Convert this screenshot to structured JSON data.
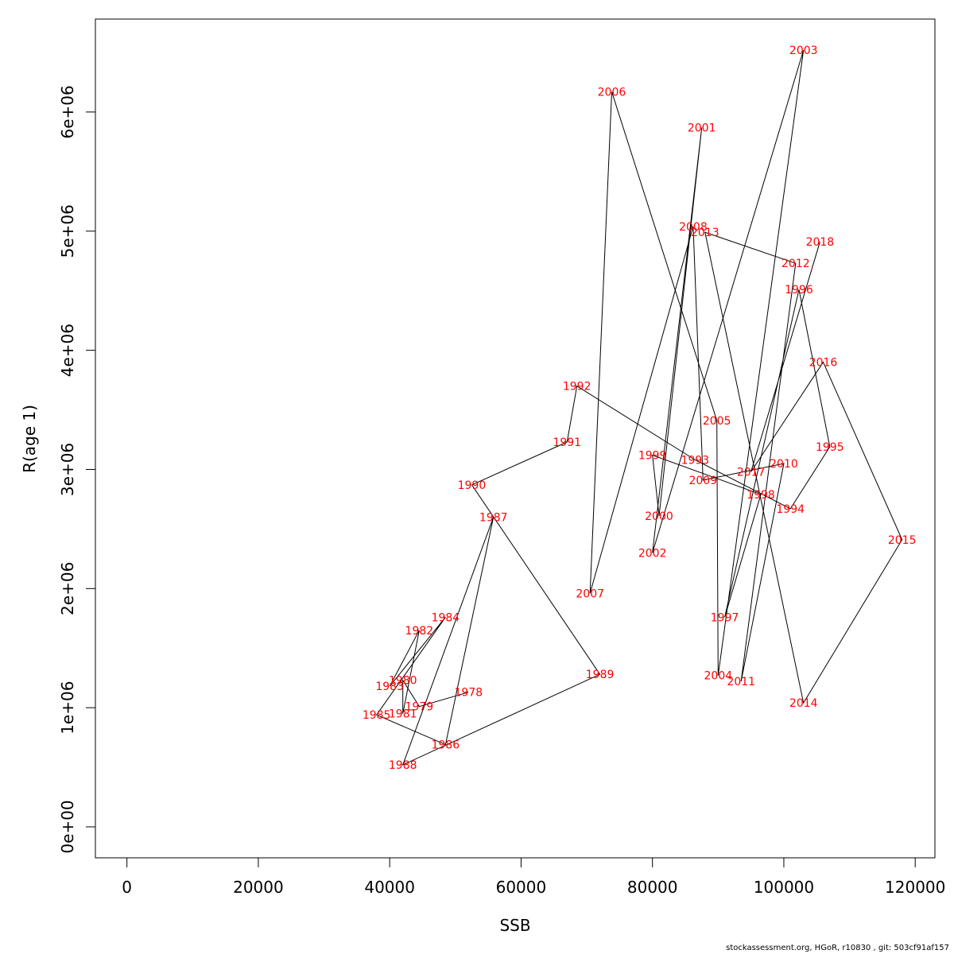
{
  "chart_data": {
    "type": "line",
    "xlabel": "SSB",
    "ylabel": "R(age 1)",
    "xlim": [
      -4800,
      123000
    ],
    "ylim": [
      -260000,
      6780000
    ],
    "x_ticks": [
      0,
      20000,
      40000,
      60000,
      80000,
      100000,
      120000
    ],
    "x_tick_labels": [
      "0",
      "20000",
      "40000",
      "60000",
      "80000",
      "100000",
      "120000"
    ],
    "y_ticks": [
      0,
      1000000,
      2000000,
      3000000,
      4000000,
      5000000,
      6000000
    ],
    "y_tick_labels": [
      "0e+00",
      "1e+06",
      "2e+06",
      "3e+06",
      "4e+06",
      "5e+06",
      "6e+06"
    ],
    "point_label_color": "#ff0000",
    "line_color": "#000000",
    "points": [
      {
        "year": "1978",
        "ssb": 52000,
        "r": 1130000
      },
      {
        "year": "1979",
        "ssb": 44500,
        "r": 1010000
      },
      {
        "year": "1980",
        "ssb": 42000,
        "r": 1230000
      },
      {
        "year": "1981",
        "ssb": 42000,
        "r": 950000
      },
      {
        "year": "1982",
        "ssb": 44500,
        "r": 1650000
      },
      {
        "year": "1983",
        "ssb": 40000,
        "r": 1180000
      },
      {
        "year": "1984",
        "ssb": 48500,
        "r": 1760000
      },
      {
        "year": "1985",
        "ssb": 38000,
        "r": 940000
      },
      {
        "year": "1986",
        "ssb": 48500,
        "r": 690000
      },
      {
        "year": "1987",
        "ssb": 55800,
        "r": 2600000
      },
      {
        "year": "1988",
        "ssb": 42000,
        "r": 520000
      },
      {
        "year": "1989",
        "ssb": 72000,
        "r": 1280000
      },
      {
        "year": "1990",
        "ssb": 52500,
        "r": 2870000
      },
      {
        "year": "1991",
        "ssb": 67000,
        "r": 3230000
      },
      {
        "year": "1992",
        "ssb": 68500,
        "r": 3700000
      },
      {
        "year": "1993",
        "ssb": 86500,
        "r": 3080000
      },
      {
        "year": "1994",
        "ssb": 101000,
        "r": 2670000
      },
      {
        "year": "1995",
        "ssb": 107000,
        "r": 3190000
      },
      {
        "year": "1996",
        "ssb": 102300,
        "r": 4510000
      },
      {
        "year": "1997",
        "ssb": 91000,
        "r": 1760000
      },
      {
        "year": "1998",
        "ssb": 96500,
        "r": 2790000
      },
      {
        "year": "1999",
        "ssb": 80000,
        "r": 3120000
      },
      {
        "year": "2000",
        "ssb": 81000,
        "r": 2610000
      },
      {
        "year": "2001",
        "ssb": 87500,
        "r": 5870000
      },
      {
        "year": "2002",
        "ssb": 80000,
        "r": 2300000
      },
      {
        "year": "2003",
        "ssb": 103000,
        "r": 6520000
      },
      {
        "year": "2004",
        "ssb": 90000,
        "r": 1270000
      },
      {
        "year": "2005",
        "ssb": 89800,
        "r": 3410000
      },
      {
        "year": "2006",
        "ssb": 73800,
        "r": 6170000
      },
      {
        "year": "2007",
        "ssb": 70500,
        "r": 1960000
      },
      {
        "year": "2008",
        "ssb": 86200,
        "r": 5040000
      },
      {
        "year": "2009",
        "ssb": 87700,
        "r": 2910000
      },
      {
        "year": "2010",
        "ssb": 100000,
        "r": 3050000
      },
      {
        "year": "2011",
        "ssb": 93500,
        "r": 1220000
      },
      {
        "year": "2012",
        "ssb": 101800,
        "r": 4730000
      },
      {
        "year": "2013",
        "ssb": 88000,
        "r": 4990000
      },
      {
        "year": "2014",
        "ssb": 103000,
        "r": 1040000
      },
      {
        "year": "2015",
        "ssb": 118000,
        "r": 2410000
      },
      {
        "year": "2016",
        "ssb": 106000,
        "r": 3900000
      },
      {
        "year": "2017",
        "ssb": 95000,
        "r": 2980000
      },
      {
        "year": "2018",
        "ssb": 105500,
        "r": 4910000
      }
    ]
  },
  "footer": {
    "text": "stockassessment.org, HGoR, r10830 , git: 503cf91af157"
  }
}
